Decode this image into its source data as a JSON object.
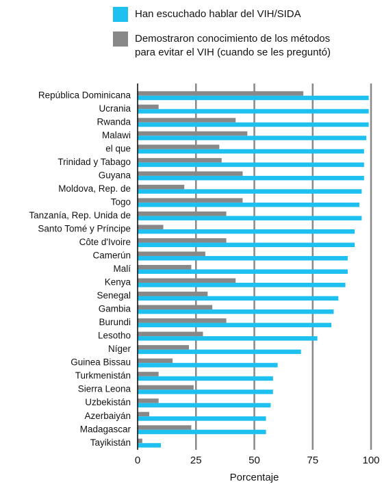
{
  "chart_data": {
    "type": "barh",
    "categories": [
      "República Dominicana",
      "Ucrania",
      "Rwanda",
      "Malawi",
      "el que",
      "Trinidad y Tabago",
      "Guyana",
      "Moldova, Rep. de",
      "Togo",
      "Tanzanía, Rep. Unida de",
      "Santo Tomé y Príncipe",
      "Côte d'Ivoire",
      "Camerún",
      "Malí",
      "Kenya",
      "Senegal",
      "Gambia",
      "Burundi",
      "Lesotho",
      "Níger",
      "Guinea Bissau",
      "Turkmenistán",
      "Sierra Leona",
      "Uzbekistán",
      "Azerbaiyán",
      "Madagascar",
      "Tayikistán"
    ],
    "series": [
      {
        "name": "Han escuchado hablar del VIH/SIDA",
        "color": "#1ec0f0",
        "values": [
          99,
          99,
          99,
          98,
          97,
          97,
          97,
          96,
          95,
          96,
          93,
          93,
          90,
          90,
          89,
          86,
          84,
          83,
          77,
          70,
          60,
          58,
          58,
          57,
          55,
          55,
          10
        ]
      },
      {
        "name": "Demostraron conocimiento de los métodos\npara evitar el VIH (cuando se les preguntó)",
        "color": "#888888",
        "values": [
          71,
          9,
          42,
          47,
          35,
          36,
          45,
          20,
          45,
          38,
          11,
          38,
          29,
          23,
          42,
          30,
          32,
          38,
          28,
          22,
          15,
          9,
          24,
          9,
          5,
          23,
          2
        ]
      }
    ],
    "xlabel": "Porcentaje",
    "xlim": [
      0,
      100
    ],
    "xticks": [
      0,
      25,
      50,
      75,
      100
    ],
    "grid": true
  }
}
